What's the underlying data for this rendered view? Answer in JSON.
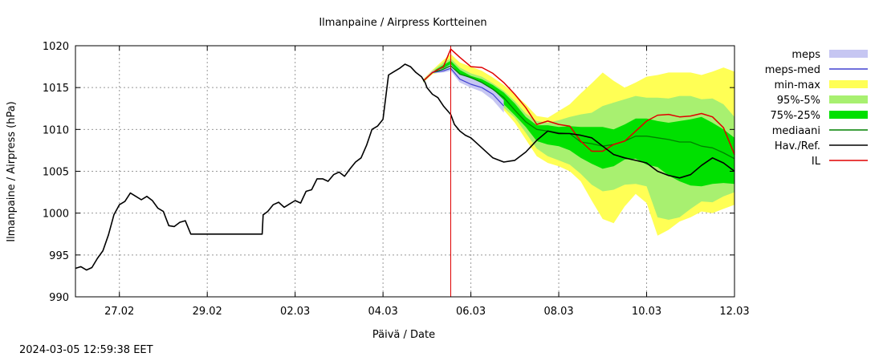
{
  "chart_data": {
    "type": "line",
    "title": "Ilmanpaine / Airpress Kortteinen",
    "xlabel": "Päivä / Date",
    "ylabel": "Ilmanpaine / Airpress (hPa)",
    "ylim": [
      990,
      1020
    ],
    "xlim": [
      "2024-02-26",
      "2024-03-12"
    ],
    "yticks": [
      990,
      995,
      1000,
      1005,
      1010,
      1015,
      1020
    ],
    "xticks": [
      {
        "x": "2024-02-27",
        "label": "27.02"
      },
      {
        "x": "2024-02-29",
        "label": "29.02"
      },
      {
        "x": "2024-03-02",
        "label": "02.03"
      },
      {
        "x": "2024-03-04",
        "label": "04.03"
      },
      {
        "x": "2024-03-06",
        "label": "06.03"
      },
      {
        "x": "2024-03-08",
        "label": "08.03"
      },
      {
        "x": "2024-03-10",
        "label": "10.03"
      },
      {
        "x": "2024-03-12",
        "label": "12.03"
      }
    ],
    "grid": true,
    "legend_position": "right",
    "now_marker": "2024-03-05T13:00",
    "legend": [
      {
        "label": "meps",
        "kind": "band",
        "color": "#c6c6f2"
      },
      {
        "label": "meps-med",
        "kind": "line",
        "color": "#4040d0"
      },
      {
        "label": "min-max",
        "kind": "band",
        "color": "#ffff55"
      },
      {
        "label": "95%-5%",
        "kind": "band",
        "color": "#a8f070"
      },
      {
        "label": "75%-25%",
        "kind": "band",
        "color": "#00e000"
      },
      {
        "label": "mediaani",
        "kind": "line",
        "color": "#008000"
      },
      {
        "label": "Hav./Ref.",
        "kind": "line",
        "color": "#000000"
      },
      {
        "label": "IL",
        "kind": "line",
        "color": "#e00000"
      }
    ],
    "observed_x": [
      "2024-02-26T00:00",
      "2024-02-26T03:00",
      "2024-02-26T06:00",
      "2024-02-26T09:00",
      "2024-02-26T12:00",
      "2024-02-26T15:00",
      "2024-02-26T18:00",
      "2024-02-26T21:00",
      "2024-02-27T00:00",
      "2024-02-27T03:00",
      "2024-02-27T06:00",
      "2024-02-27T09:00",
      "2024-02-27T12:00",
      "2024-02-27T15:00",
      "2024-02-27T18:00",
      "2024-02-27T21:00",
      "2024-02-28T00:00",
      "2024-02-28T03:00",
      "2024-02-28T06:00",
      "2024-02-28T09:00",
      "2024-02-28T12:00",
      "2024-02-28T15:00",
      "2024-02-28T18:00",
      "2024-02-28T21:00",
      "2024-02-29T00:00",
      "2024-02-29T03:00",
      "2024-02-29T06:00",
      "2024-02-29T12:00",
      "2024-02-29T18:00",
      "2024-03-01T00:00",
      "2024-03-01T06:00",
      "2024-03-01T06:30",
      "2024-03-01T09:00",
      "2024-03-01T12:00",
      "2024-03-01T15:00",
      "2024-03-01T18:00",
      "2024-03-01T21:00",
      "2024-03-02T00:00",
      "2024-03-02T03:00",
      "2024-03-02T06:00",
      "2024-03-02T09:00",
      "2024-03-02T12:00",
      "2024-03-02T15:00",
      "2024-03-02T18:00",
      "2024-03-02T21:00",
      "2024-03-03T00:00",
      "2024-03-03T03:00",
      "2024-03-03T06:00",
      "2024-03-03T09:00",
      "2024-03-03T12:00",
      "2024-03-03T15:00",
      "2024-03-03T18:00",
      "2024-03-03T21:00",
      "2024-03-04T00:00",
      "2024-03-04T03:00",
      "2024-03-04T06:00",
      "2024-03-04T09:00",
      "2024-03-04T12:00",
      "2024-03-04T15:00",
      "2024-03-04T18:00",
      "2024-03-04T21:00",
      "2024-03-04T23:00",
      "2024-03-05T00:00",
      "2024-03-05T03:00",
      "2024-03-05T06:00",
      "2024-03-05T09:00",
      "2024-03-05T13:00",
      "2024-03-05T15:00",
      "2024-03-05T18:00",
      "2024-03-05T21:00",
      "2024-03-06T00:00",
      "2024-03-06T06:00",
      "2024-03-06T12:00",
      "2024-03-06T18:00",
      "2024-03-07T00:00",
      "2024-03-07T06:00",
      "2024-03-07T12:00",
      "2024-03-07T18:00",
      "2024-03-08T00:00",
      "2024-03-08T06:00",
      "2024-03-08T12:00",
      "2024-03-08T18:00",
      "2024-03-09T00:00",
      "2024-03-09T06:00",
      "2024-03-09T12:00",
      "2024-03-09T18:00",
      "2024-03-10T00:00",
      "2024-03-10T06:00",
      "2024-03-10T12:00",
      "2024-03-10T18:00",
      "2024-03-11T00:00",
      "2024-03-11T06:00",
      "2024-03-11T12:00",
      "2024-03-11T18:00",
      "2024-03-12T00:00"
    ],
    "observed_y": [
      993.4,
      993.6,
      993.2,
      993.5,
      994.6,
      995.5,
      997.4,
      999.8,
      1001.0,
      1001.4,
      1002.4,
      1002.0,
      1001.6,
      1002.0,
      1001.5,
      1000.6,
      1000.2,
      998.5,
      998.4,
      998.9,
      999.1,
      997.5,
      997.5,
      997.5,
      997.5,
      997.5,
      997.5,
      997.5,
      997.5,
      997.5,
      997.5,
      999.8,
      1000.2,
      1001.0,
      1001.3,
      1000.7,
      1001.1,
      1001.5,
      1001.2,
      1002.6,
      1002.8,
      1004.1,
      1004.1,
      1003.8,
      1004.6,
      1004.9,
      1004.4,
      1005.3,
      1006.1,
      1006.6,
      1008.1,
      1010.0,
      1010.4,
      1011.2,
      1016.5,
      1016.9,
      1017.3,
      1017.8,
      1017.5,
      1016.8,
      1016.3,
      1015.6,
      1015.0,
      1014.2,
      1013.8,
      1012.8,
      1011.8,
      1010.6,
      1009.8,
      1009.3,
      1009.0,
      1007.8,
      1006.6,
      1006.1,
      1006.3,
      1007.3,
      1008.7,
      1009.8,
      1009.5,
      1009.5,
      1009.3,
      1009.0,
      1008.0,
      1007.0,
      1006.6,
      1006.3,
      1006.0,
      1005.0,
      1004.5,
      1004.2,
      1004.6,
      1005.7,
      1006.6,
      1006.0,
      1005.0
    ],
    "forecast_x": [
      "2024-03-04T22:00",
      "2024-03-05T03:00",
      "2024-03-05T09:00",
      "2024-03-05T13:00",
      "2024-03-05T18:00",
      "2024-03-06T00:00",
      "2024-03-06T06:00",
      "2024-03-06T12:00",
      "2024-03-06T18:00",
      "2024-03-07T00:00",
      "2024-03-07T06:00",
      "2024-03-07T12:00",
      "2024-03-07T18:00",
      "2024-03-08T00:00",
      "2024-03-08T06:00",
      "2024-03-08T12:00",
      "2024-03-08T18:00",
      "2024-03-09T00:00",
      "2024-03-09T06:00",
      "2024-03-09T12:00",
      "2024-03-09T18:00",
      "2024-03-10T00:00",
      "2024-03-10T06:00",
      "2024-03-10T12:00",
      "2024-03-10T18:00",
      "2024-03-11T00:00",
      "2024-03-11T06:00",
      "2024-03-11T12:00",
      "2024-03-11T18:00",
      "2024-03-12T00:00"
    ],
    "il": [
      1015.8,
      1016.8,
      1017.5,
      1019.6,
      1018.6,
      1017.5,
      1017.4,
      1016.7,
      1015.6,
      1014.2,
      1012.6,
      1010.6,
      1011.0,
      1010.6,
      1010.4,
      1008.6,
      1007.4,
      1007.4,
      1008.2,
      1008.6,
      1009.8,
      1011.0,
      1011.7,
      1011.8,
      1011.5,
      1011.6,
      1011.9,
      1011.5,
      1010.2,
      1007.0
    ],
    "hav_ref": [
      1015.8,
      1016.8,
      1017.3,
      1017.8,
      1016.8,
      1016.4,
      1015.8,
      1015.0,
      1014.0,
      1012.5,
      1010.8,
      1009.4,
      1009.6,
      1009.5,
      1009.3,
      1007.0,
      1006.2,
      1006.0,
      1007.0,
      1008.0,
      1009.8,
      1009.8,
      1009.0,
      1008.8,
      1009.2,
      1009.4,
      1009.3,
      1009.0,
      1008.0,
      1005.0
    ],
    "mediaani": [
      1015.8,
      1016.8,
      1017.2,
      1017.6,
      1016.6,
      1016.2,
      1015.6,
      1014.8,
      1013.8,
      1012.3,
      1010.9,
      1010.0,
      1009.8,
      1009.6,
      1009.5,
      1008.5,
      1008.3,
      1008.0,
      1008.2,
      1008.6,
      1009.2,
      1009.2,
      1009.0,
      1008.8,
      1008.5,
      1008.5,
      1008.0,
      1007.8,
      1007.2,
      1006.5
    ],
    "meps_med": [
      1015.8,
      1016.8,
      1017.0,
      1017.3,
      1016.0,
      1015.4,
      1015.0,
      1014.2,
      1012.8
    ],
    "meps_lower": [
      1015.7,
      1016.7,
      1016.8,
      1017.0,
      1015.6,
      1015.0,
      1014.5,
      1013.5,
      1012.0
    ],
    "meps_upper": [
      1015.9,
      1017.0,
      1017.3,
      1017.8,
      1016.6,
      1016.1,
      1015.6,
      1014.8,
      1013.5
    ],
    "minmax_lower": [
      1015.6,
      1016.6,
      1016.9,
      1017.2,
      1015.9,
      1015.4,
      1014.8,
      1013.8,
      1012.3,
      1010.8,
      1008.8,
      1006.8,
      1006.0,
      1005.6,
      1005.0,
      1003.8,
      1001.5,
      999.3,
      998.8,
      1000.8,
      1002.3,
      1001.2,
      997.3,
      998.0,
      999.0,
      999.5,
      1000.2,
      1000.0,
      1000.5,
      1001.0
    ],
    "minmax_upper": [
      1016.0,
      1017.1,
      1018.3,
      1019.0,
      1018.0,
      1017.5,
      1017.0,
      1016.2,
      1015.3,
      1014.2,
      1013.0,
      1011.6,
      1011.4,
      1012.2,
      1013.0,
      1014.3,
      1015.5,
      1016.8,
      1015.8,
      1015.0,
      1015.6,
      1016.3,
      1016.5,
      1016.8,
      1016.8,
      1016.8,
      1016.5,
      1016.9,
      1017.4,
      1016.9
    ],
    "p95_lower": [
      1015.6,
      1016.7,
      1017.0,
      1017.3,
      1016.0,
      1015.5,
      1014.9,
      1014.0,
      1012.6,
      1011.4,
      1009.6,
      1007.7,
      1006.8,
      1006.3,
      1005.8,
      1004.7,
      1003.4,
      1002.6,
      1002.8,
      1003.4,
      1003.5,
      1003.2,
      999.5,
      999.2,
      999.5,
      1000.5,
      1001.4,
      1001.3,
      1002.0,
      1002.5
    ],
    "p95_upper": [
      1015.9,
      1017.0,
      1018.0,
      1018.5,
      1017.4,
      1016.7,
      1016.3,
      1015.5,
      1014.6,
      1013.4,
      1011.9,
      1011.0,
      1010.8,
      1011.1,
      1011.5,
      1011.8,
      1012.0,
      1012.8,
      1013.2,
      1013.6,
      1014.0,
      1013.8,
      1013.8,
      1013.7,
      1014.0,
      1014.0,
      1013.6,
      1013.7,
      1013.0,
      1011.5
    ],
    "p75_lower": [
      1015.7,
      1016.7,
      1017.1,
      1017.4,
      1016.3,
      1015.7,
      1015.1,
      1014.2,
      1013.0,
      1011.7,
      1010.3,
      1008.6,
      1008.2,
      1008.0,
      1007.5,
      1006.6,
      1005.9,
      1005.3,
      1005.6,
      1006.4,
      1006.5,
      1005.8,
      1005.5,
      1004.5,
      1003.8,
      1003.3,
      1003.2,
      1003.5,
      1003.6,
      1003.5
    ],
    "p75_upper": [
      1015.8,
      1016.9,
      1017.7,
      1018.2,
      1017.1,
      1016.4,
      1016.0,
      1015.3,
      1014.4,
      1013.1,
      1011.5,
      1010.5,
      1010.5,
      1010.3,
      1010.4,
      1010.3,
      1010.3,
      1010.3,
      1010.0,
      1010.6,
      1011.3,
      1011.3,
      1011.0,
      1010.8,
      1011.0,
      1011.2,
      1011.5,
      1010.8,
      1010.0,
      1009.0
    ]
  },
  "footer": {
    "timestamp": "2024-03-05 12:59:38 EET"
  }
}
